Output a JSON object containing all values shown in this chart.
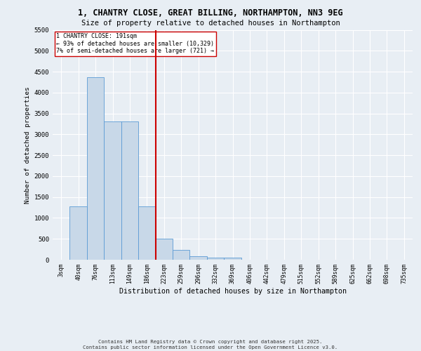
{
  "title_line1": "1, CHANTRY CLOSE, GREAT BILLING, NORTHAMPTON, NN3 9EG",
  "title_line2": "Size of property relative to detached houses in Northampton",
  "xlabel": "Distribution of detached houses by size in Northampton",
  "ylabel": "Number of detached properties",
  "footer_line1": "Contains HM Land Registry data © Crown copyright and database right 2025.",
  "footer_line2": "Contains public sector information licensed under the Open Government Licence v3.0.",
  "bin_labels": [
    "3sqm",
    "40sqm",
    "76sqm",
    "113sqm",
    "149sqm",
    "186sqm",
    "223sqm",
    "259sqm",
    "296sqm",
    "332sqm",
    "369sqm",
    "406sqm",
    "442sqm",
    "479sqm",
    "515sqm",
    "552sqm",
    "589sqm",
    "625sqm",
    "662sqm",
    "698sqm",
    "735sqm"
  ],
  "bar_values": [
    0,
    1270,
    4370,
    3310,
    3310,
    1280,
    500,
    230,
    90,
    55,
    55,
    0,
    0,
    0,
    0,
    0,
    0,
    0,
    0,
    0,
    0
  ],
  "bar_color": "#c8d8e8",
  "bar_edge_color": "#5b9bd5",
  "vline_x_idx": 5,
  "vline_color": "#cc0000",
  "annotation_text": "1 CHANTRY CLOSE: 191sqm\n← 93% of detached houses are smaller (10,329)\n7% of semi-detached houses are larger (721) →",
  "annotation_box_color": "#ffffff",
  "annotation_box_edge_color": "#cc0000",
  "ylim": [
    0,
    5500
  ],
  "yticks": [
    0,
    500,
    1000,
    1500,
    2000,
    2500,
    3000,
    3500,
    4000,
    4500,
    5000,
    5500
  ],
  "background_color": "#e8eef4",
  "plot_background_color": "#e8eef4",
  "grid_color": "#ffffff"
}
